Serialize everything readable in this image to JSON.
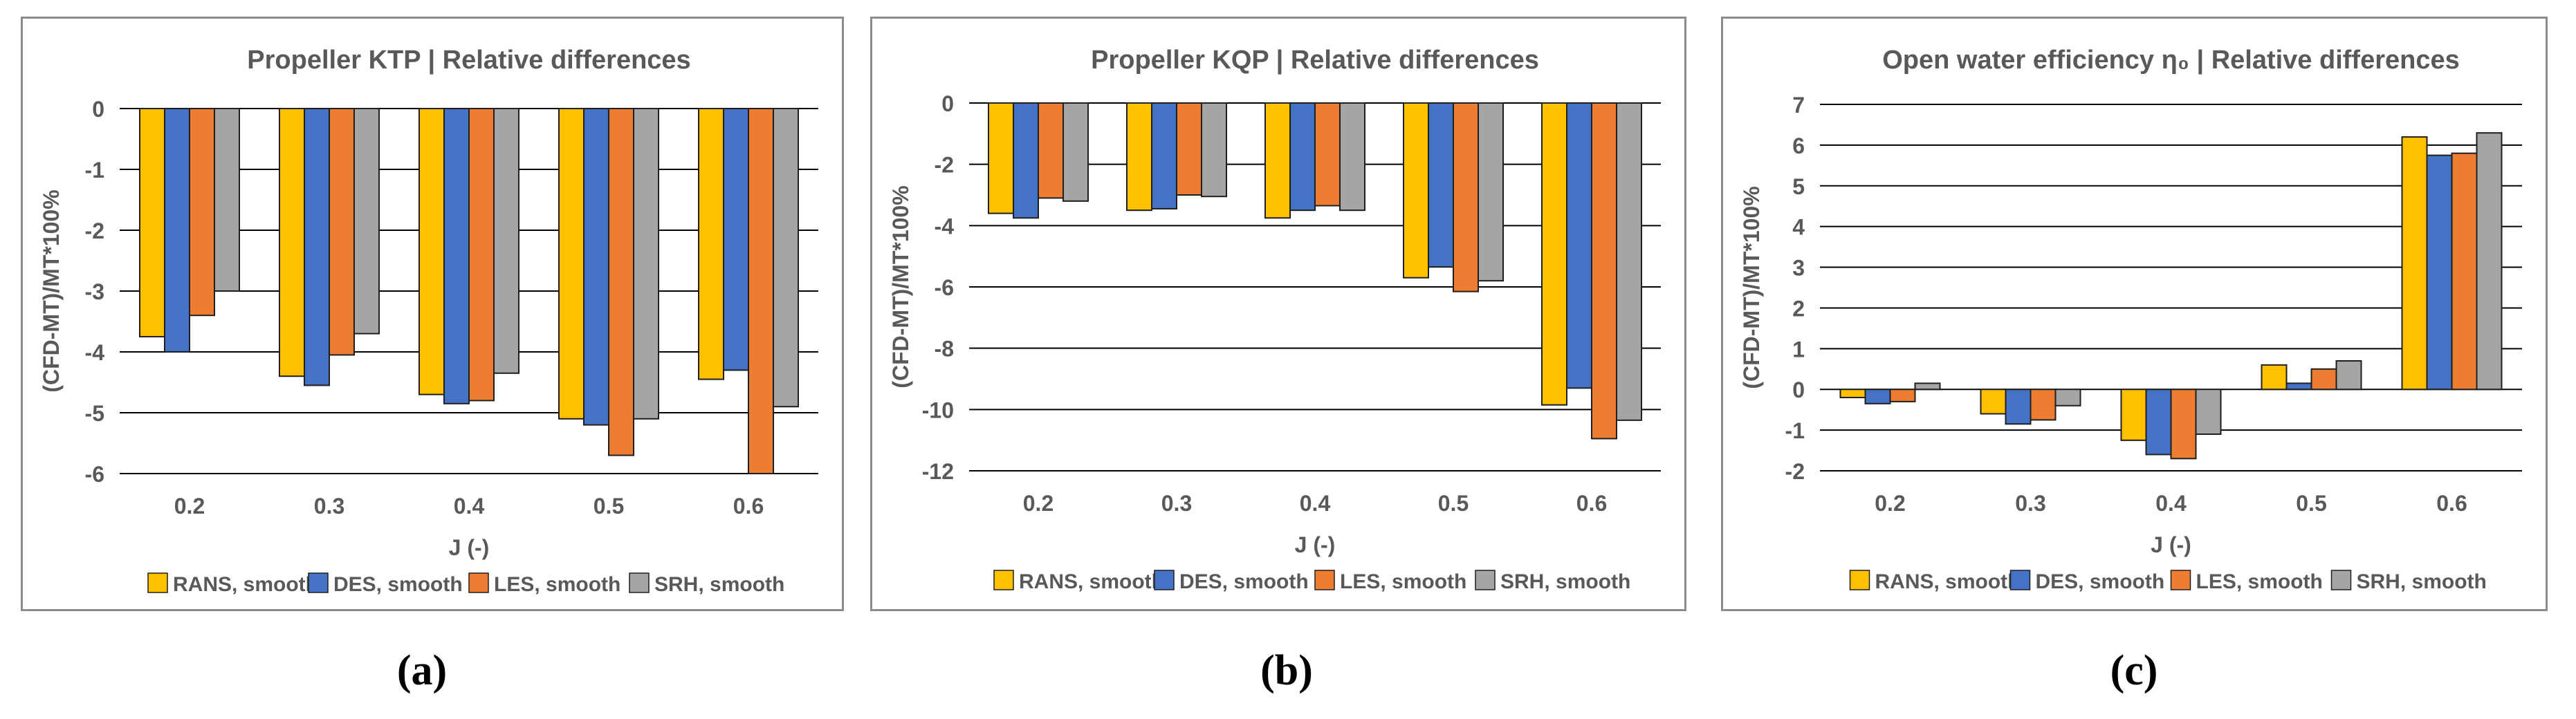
{
  "chart_data": [
    {
      "type": "bar",
      "title": "Propeller KTP | Relative differences",
      "xlabel": "J (-)",
      "ylabel": "(CFD-MT)/MT*100%",
      "categories": [
        "0.2",
        "0.3",
        "0.4",
        "0.5",
        "0.6"
      ],
      "ylim": [
        -6,
        0
      ],
      "yticks": [
        "-6",
        "-5",
        "-4",
        "-3",
        "-2",
        "-1",
        "0"
      ],
      "series": [
        {
          "name": "RANS, smooth",
          "color": "#FFC000",
          "values": [
            -3.75,
            -4.4,
            -4.7,
            -5.1,
            -4.45
          ]
        },
        {
          "name": "DES, smooth",
          "color": "#4472C4",
          "values": [
            -4.0,
            -4.55,
            -4.85,
            -5.2,
            -4.3
          ]
        },
        {
          "name": "LES, smooth",
          "color": "#ED7D31",
          "values": [
            -3.4,
            -4.05,
            -4.8,
            -5.7,
            -6.0
          ]
        },
        {
          "name": "SRH, smooth",
          "color": "#A5A5A5",
          "values": [
            -3.0,
            -3.7,
            -4.35,
            -5.1,
            -4.9
          ]
        }
      ],
      "caption": "(a)"
    },
    {
      "type": "bar",
      "title": "Propeller KQP | Relative differences",
      "xlabel": "J (-)",
      "ylabel": "(CFD-MT)/MT*100%",
      "categories": [
        "0.2",
        "0.3",
        "0.4",
        "0.5",
        "0.6"
      ],
      "ylim": [
        -12,
        0
      ],
      "yticks": [
        "-12",
        "-10",
        "-8",
        "-6",
        "-4",
        "-2",
        "0"
      ],
      "series": [
        {
          "name": "RANS, smooth",
          "color": "#FFC000",
          "values": [
            -3.6,
            -3.5,
            -3.75,
            -5.7,
            -9.85
          ]
        },
        {
          "name": "DES, smooth",
          "color": "#4472C4",
          "values": [
            -3.75,
            -3.45,
            -3.5,
            -5.35,
            -9.3
          ]
        },
        {
          "name": "LES, smooth",
          "color": "#ED7D31",
          "values": [
            -3.1,
            -3.0,
            -3.35,
            -6.15,
            -10.95
          ]
        },
        {
          "name": "SRH, smooth",
          "color": "#A5A5A5",
          "values": [
            -3.2,
            -3.05,
            -3.5,
            -5.8,
            -10.35
          ]
        }
      ],
      "caption": "(b)"
    },
    {
      "type": "bar",
      "title": "Open water efficiency η₀ | Relative differences",
      "xlabel": "J (-)",
      "ylabel": "(CFD-MT)/MT*100%",
      "categories": [
        "0.2",
        "0.3",
        "0.4",
        "0.5",
        "0.6"
      ],
      "ylim": [
        -2,
        7
      ],
      "yticks": [
        "-2",
        "-1",
        "0",
        "1",
        "2",
        "3",
        "4",
        "5",
        "6",
        "7"
      ],
      "series": [
        {
          "name": "RANS, smooth",
          "color": "#FFC000",
          "values": [
            -0.2,
            -0.6,
            -1.25,
            0.6,
            6.2
          ]
        },
        {
          "name": "DES, smooth",
          "color": "#4472C4",
          "values": [
            -0.35,
            -0.85,
            -1.6,
            0.15,
            5.75
          ]
        },
        {
          "name": "LES, smooth",
          "color": "#ED7D31",
          "values": [
            -0.3,
            -0.75,
            -1.7,
            0.5,
            5.8
          ]
        },
        {
          "name": "SRH, smooth",
          "color": "#A5A5A5",
          "values": [
            0.15,
            -0.4,
            -1.1,
            0.7,
            6.3
          ]
        }
      ],
      "caption": "(c)"
    }
  ]
}
